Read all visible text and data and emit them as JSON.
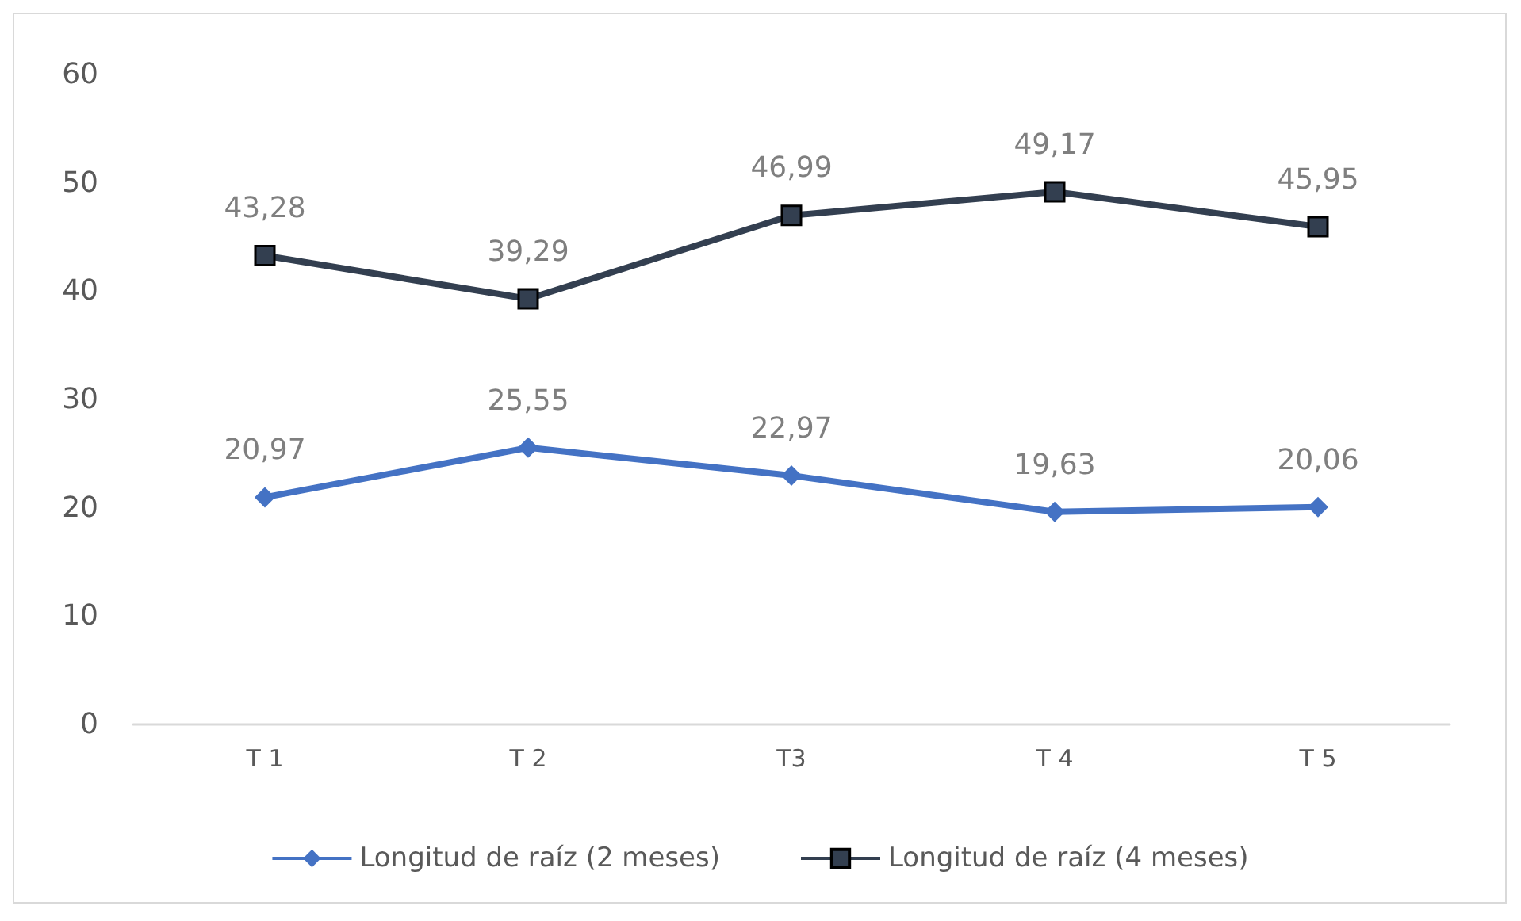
{
  "chart_data": {
    "type": "line",
    "categories": [
      "T 1",
      "T 2",
      "T3",
      "T 4",
      "T 5"
    ],
    "series": [
      {
        "name": "Longitud de raíz (2 meses)",
        "color": "#4472c4",
        "marker": "diamond",
        "values": [
          20.97,
          25.55,
          22.97,
          19.63,
          20.06
        ],
        "value_labels": [
          "20,97",
          "25,55",
          "22,97",
          "19,63",
          "20,06"
        ]
      },
      {
        "name": "Longitud de raíz (4 meses)",
        "color": "#333f50",
        "marker": "square",
        "values": [
          43.28,
          39.29,
          46.99,
          49.17,
          45.95
        ],
        "value_labels": [
          "43,28",
          "39,29",
          "46,99",
          "49,17",
          "45,95"
        ]
      }
    ],
    "ylim": [
      0,
      60
    ],
    "yticks": [
      0,
      10,
      20,
      30,
      40,
      50,
      60
    ],
    "grid": false,
    "legend": "bottom",
    "line_style": "solid"
  }
}
